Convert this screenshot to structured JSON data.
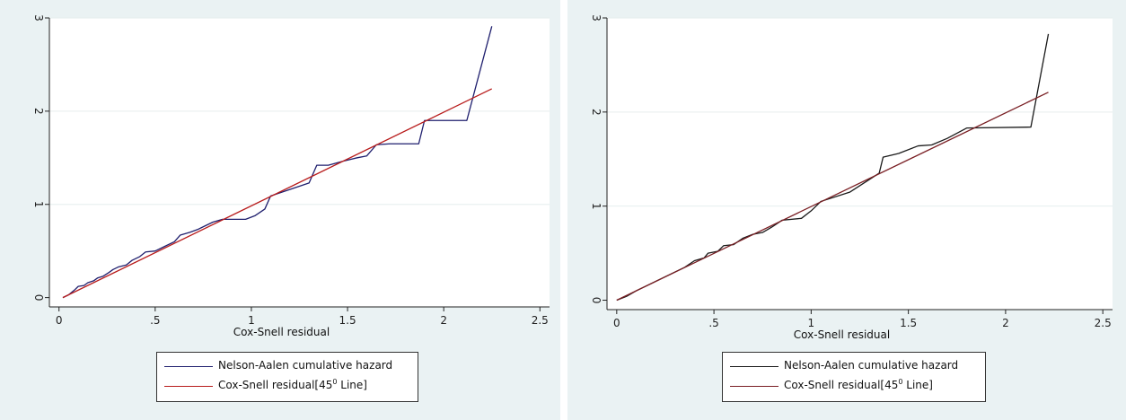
{
  "chart_data": [
    {
      "type": "line",
      "xlabel": "Cox-Snell residual",
      "ylabel": "",
      "xlim": [
        -0.05,
        2.55
      ],
      "ylim": [
        -0.1,
        3.0
      ],
      "xticks": [
        0,
        0.5,
        1,
        1.5,
        2,
        2.5
      ],
      "xtick_labels": [
        "0",
        ".5",
        "1",
        "1.5",
        "2",
        "2.5"
      ],
      "yticks": [
        0,
        1,
        2,
        3
      ],
      "ytick_labels": [
        "0",
        "1",
        "2",
        "3"
      ],
      "grid": "horizontal",
      "legend_position": "bottom",
      "series": [
        {
          "name": "Nelson-Aalen cumulative hazard",
          "color": "#1f1f6e",
          "kind": "step",
          "points": [
            [
              0.02,
              0.0
            ],
            [
              0.05,
              0.03
            ],
            [
              0.08,
              0.08
            ],
            [
              0.1,
              0.12
            ],
            [
              0.13,
              0.13
            ],
            [
              0.15,
              0.16
            ],
            [
              0.18,
              0.18
            ],
            [
              0.2,
              0.21
            ],
            [
              0.23,
              0.23
            ],
            [
              0.26,
              0.27
            ],
            [
              0.28,
              0.3
            ],
            [
              0.31,
              0.33
            ],
            [
              0.35,
              0.35
            ],
            [
              0.38,
              0.4
            ],
            [
              0.42,
              0.44
            ],
            [
              0.45,
              0.49
            ],
            [
              0.5,
              0.5
            ],
            [
              0.55,
              0.55
            ],
            [
              0.6,
              0.6
            ],
            [
              0.63,
              0.67
            ],
            [
              0.68,
              0.7
            ],
            [
              0.72,
              0.73
            ],
            [
              0.76,
              0.77
            ],
            [
              0.8,
              0.81
            ],
            [
              0.85,
              0.84
            ],
            [
              0.97,
              0.84
            ],
            [
              1.02,
              0.88
            ],
            [
              1.07,
              0.95
            ],
            [
              1.1,
              1.09
            ],
            [
              1.2,
              1.16
            ],
            [
              1.3,
              1.23
            ],
            [
              1.34,
              1.42
            ],
            [
              1.4,
              1.42
            ],
            [
              1.47,
              1.46
            ],
            [
              1.55,
              1.5
            ],
            [
              1.6,
              1.52
            ],
            [
              1.65,
              1.64
            ],
            [
              1.72,
              1.65
            ],
            [
              1.87,
              1.65
            ],
            [
              1.9,
              1.9
            ],
            [
              2.12,
              1.9
            ],
            [
              2.25,
              2.91
            ]
          ]
        },
        {
          "name": "Cox-Snell residual[45",
          "name_sup": "0",
          "name_suffix": " Line]",
          "color": "#b81c1c",
          "kind": "line",
          "points": [
            [
              0.02,
              0.0
            ],
            [
              2.25,
              2.24
            ]
          ]
        }
      ]
    },
    {
      "type": "line",
      "xlabel": "Cox-Snell residual",
      "ylabel": "",
      "xlim": [
        -0.05,
        2.55
      ],
      "ylim": [
        -0.1,
        3.0
      ],
      "xticks": [
        0,
        0.5,
        1,
        1.5,
        2,
        2.5
      ],
      "xtick_labels": [
        "0",
        ".5",
        "1",
        "1.5",
        "2",
        "2.5"
      ],
      "yticks": [
        0,
        1,
        2,
        3
      ],
      "ytick_labels": [
        "0",
        "1",
        "2",
        "3"
      ],
      "grid": "horizontal",
      "legend_position": "bottom",
      "series": [
        {
          "name": "Nelson-Aalen cumulative hazard",
          "color": "#1a1a1a",
          "kind": "step",
          "points": [
            [
              0.0,
              0.0
            ],
            [
              0.05,
              0.04
            ],
            [
              0.1,
              0.1
            ],
            [
              0.15,
              0.15
            ],
            [
              0.2,
              0.2
            ],
            [
              0.25,
              0.25
            ],
            [
              0.3,
              0.3
            ],
            [
              0.35,
              0.35
            ],
            [
              0.4,
              0.42
            ],
            [
              0.45,
              0.45
            ],
            [
              0.47,
              0.5
            ],
            [
              0.52,
              0.52
            ],
            [
              0.55,
              0.58
            ],
            [
              0.6,
              0.59
            ],
            [
              0.65,
              0.66
            ],
            [
              0.7,
              0.7
            ],
            [
              0.75,
              0.72
            ],
            [
              0.8,
              0.78
            ],
            [
              0.85,
              0.85
            ],
            [
              0.95,
              0.87
            ],
            [
              1.0,
              0.95
            ],
            [
              1.05,
              1.05
            ],
            [
              1.2,
              1.15
            ],
            [
              1.35,
              1.35
            ],
            [
              1.37,
              1.52
            ],
            [
              1.45,
              1.56
            ],
            [
              1.55,
              1.64
            ],
            [
              1.62,
              1.65
            ],
            [
              1.7,
              1.72
            ],
            [
              1.8,
              1.83
            ],
            [
              2.13,
              1.84
            ],
            [
              2.22,
              2.83
            ]
          ]
        },
        {
          "name": "Cox-Snell residual[45",
          "name_sup": "0",
          "name_suffix": " Line]",
          "color": "#7a1f24",
          "kind": "line",
          "points": [
            [
              0.0,
              0.0
            ],
            [
              2.22,
              2.21
            ]
          ]
        }
      ]
    }
  ]
}
